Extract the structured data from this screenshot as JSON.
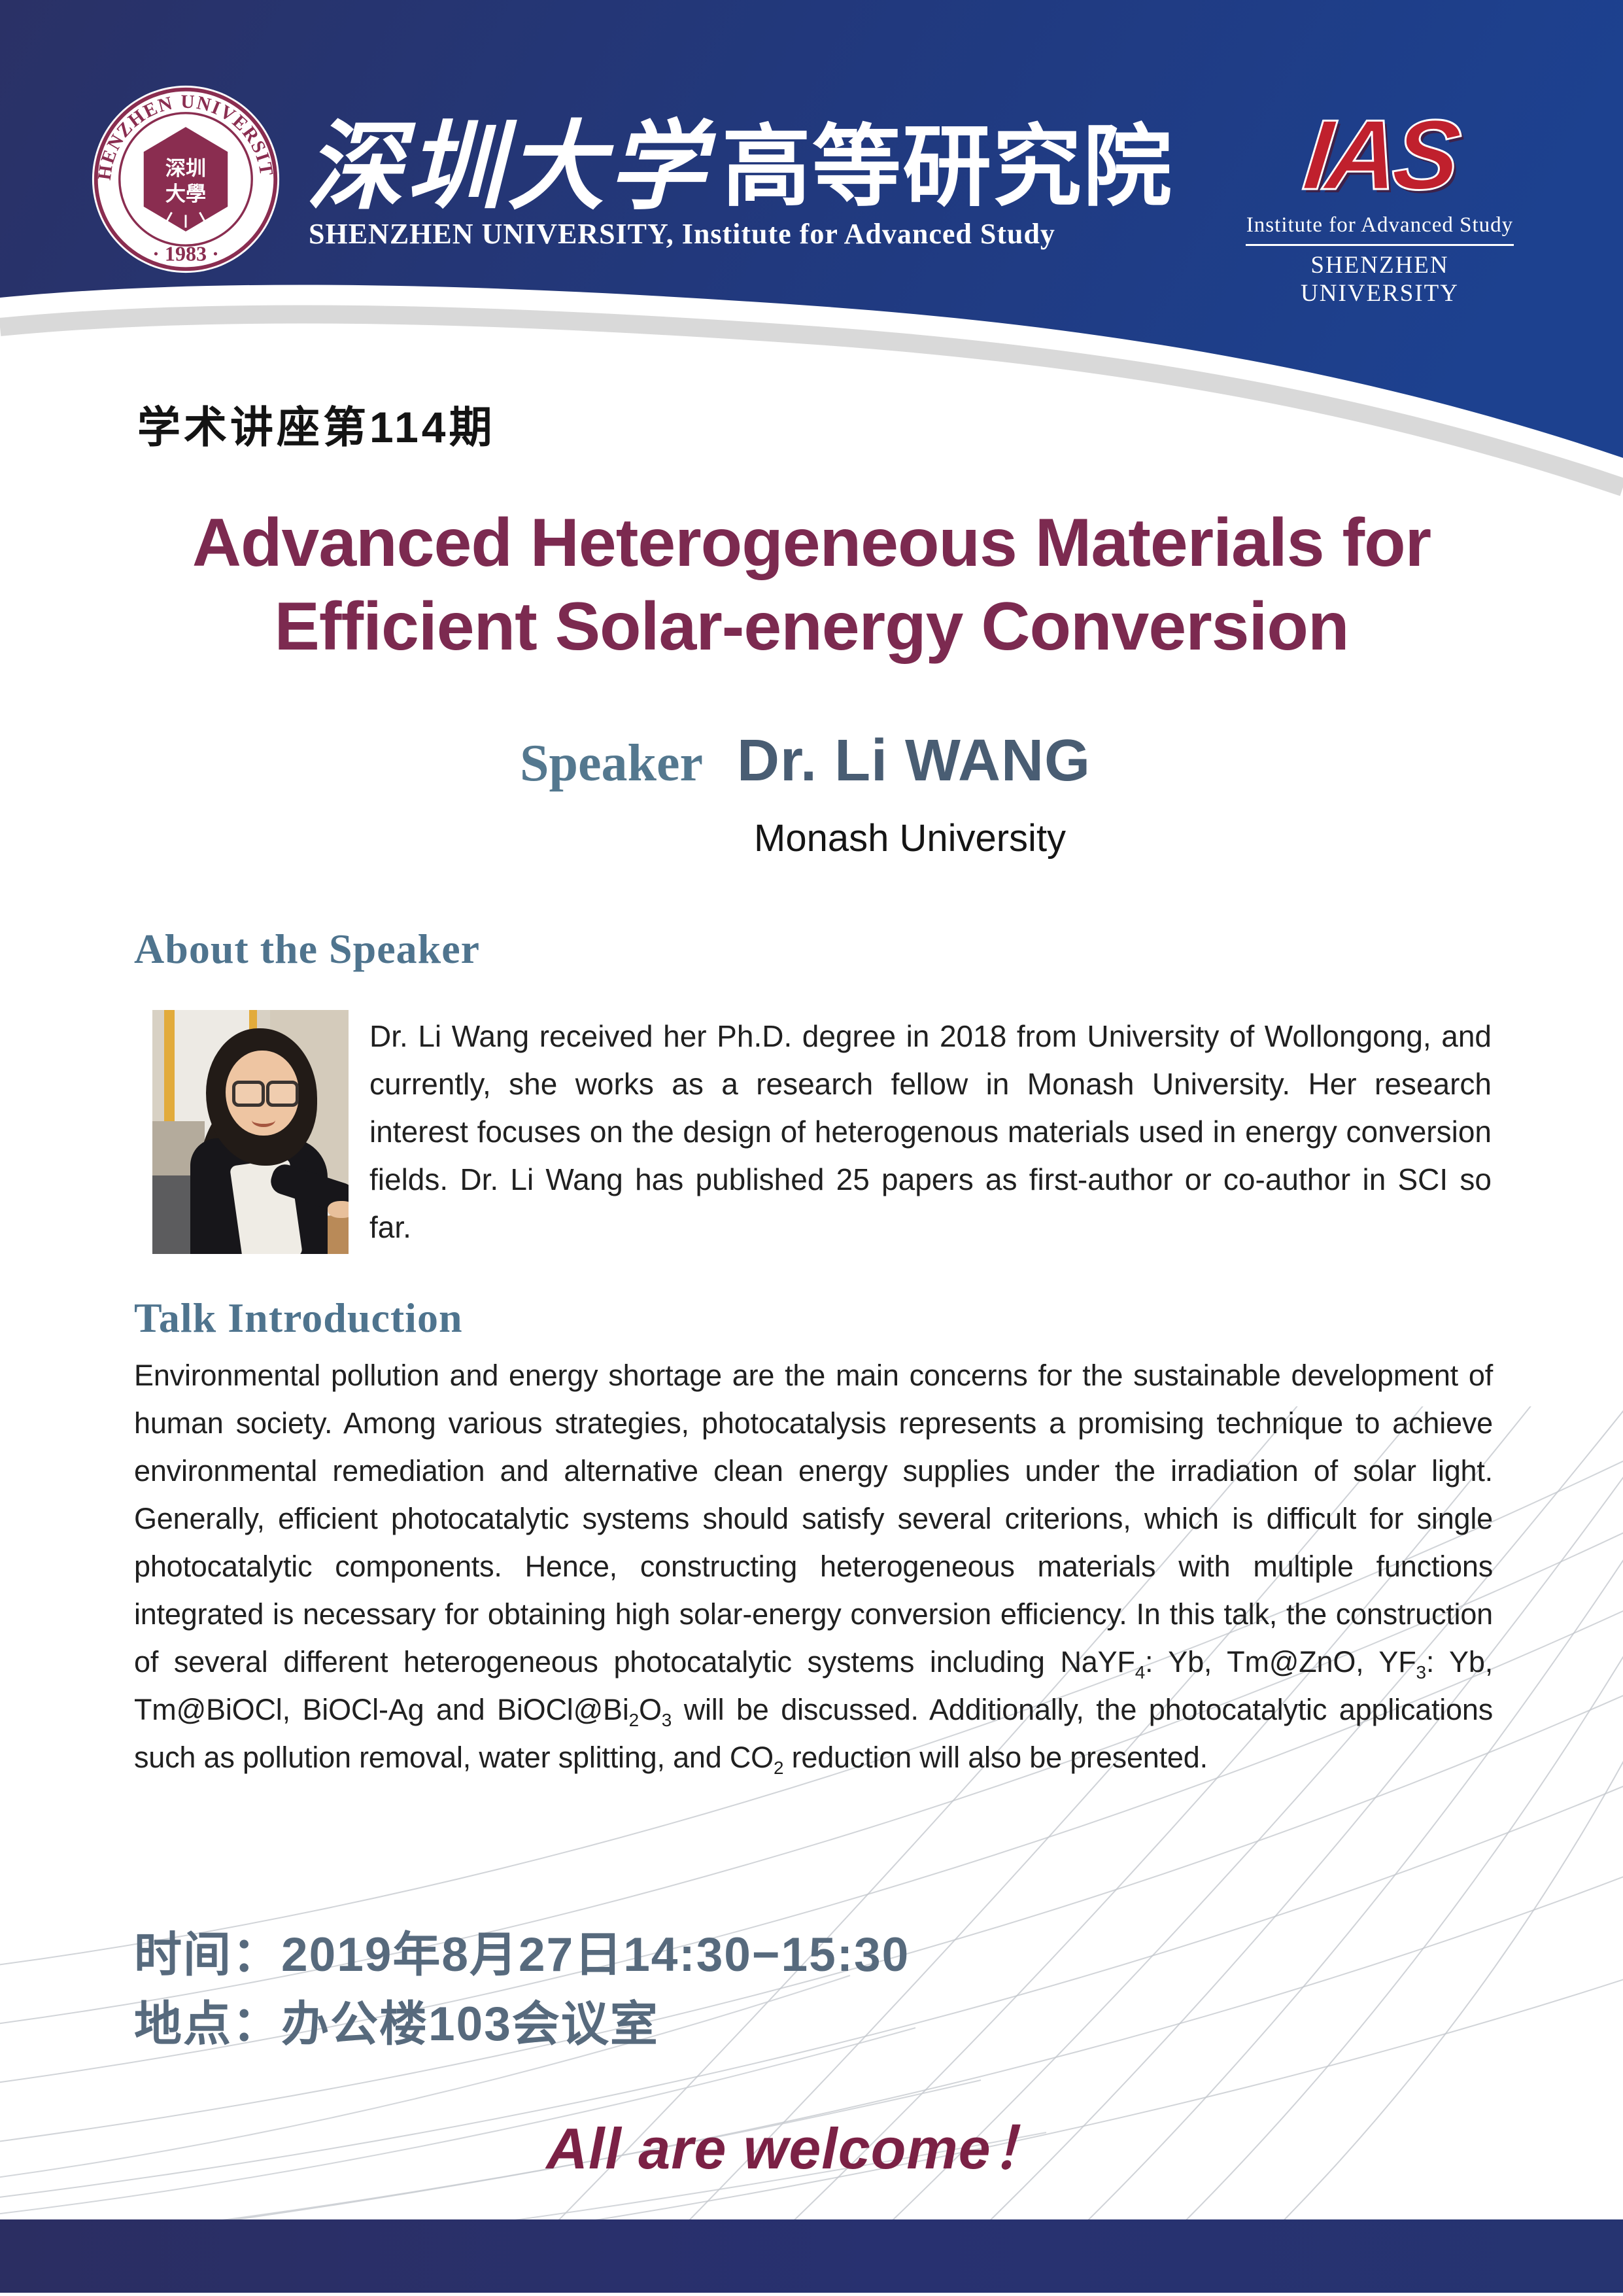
{
  "header": {
    "brand_cn_script": "深圳大学",
    "brand_cn_block": "高等研究院",
    "brand_en": "SHENZHEN UNIVERSITY, Institute for Advanced Study",
    "seal": {
      "ring_text": "SHENZHEN UNIVERSITY",
      "year": "· 1983 ·",
      "emblem_line1": "深圳",
      "emblem_line2": "大學"
    },
    "ias": {
      "mark": "IAS",
      "line1": "Institute for Advanced Study",
      "line2": "SHENZHEN UNIVERSITY"
    }
  },
  "lecture": {
    "series_label": "学术讲座第114期",
    "title_line1": "Advanced Heterogeneous Materials for",
    "title_line2": "Efficient Solar-energy Conversion",
    "speaker_label": "Speaker",
    "speaker_name": "Dr. Li WANG",
    "affiliation": "Monash University"
  },
  "about": {
    "heading": "About the Speaker",
    "photo_alt": "Photo of Dr. Li Wang",
    "bio": "Dr. Li Wang received her Ph.D. degree in 2018 from University of Wollongong, and currently, she works as a research fellow in Monash University. Her research interest focuses on the design of heterogenous materials used in energy conversion fields. Dr. Li Wang has published 25 papers as first-author or co-author in SCI so far."
  },
  "talk": {
    "heading": "Talk Introduction",
    "intro_segments": [
      {
        "text": "Environmental pollution and energy shortage are the main concerns for the sustainable development of human society. Among various strategies, photocatalysis represents a promising technique to achieve environmental remediation and alternative clean energy supplies under the irradiation of solar light. Generally, efficient photocatalytic systems should satisfy several criterions, which is difficult for single photocatalytic components. Hence, constructing heterogeneous materials with multiple functions integrated is necessary for obtaining high solar-energy conversion efficiency. In this talk, the construction of several different heterogeneous photocatalytic systems including NaYF"
      },
      {
        "text": "4",
        "sub": true
      },
      {
        "text": ": Yb, Tm@ZnO, YF"
      },
      {
        "text": "3",
        "sub": true
      },
      {
        "text": ": Yb, Tm@BiOCl, BiOCl-Ag and BiOCl@Bi"
      },
      {
        "text": "2",
        "sub": true
      },
      {
        "text": "O"
      },
      {
        "text": "3",
        "sub": true
      },
      {
        "text": " will be discussed. Additionally, the photocatalytic applications such as pollution removal, water splitting, and CO"
      },
      {
        "text": "2",
        "sub": true
      },
      {
        "text": " reduction will also be presented."
      }
    ]
  },
  "schedule": {
    "time_label": "时间：",
    "time_value": "2019年8月27日14:30−15:30",
    "venue_label": "地点：",
    "venue_value": "办公楼103会议室"
  },
  "welcome": {
    "text": "All are welcome！"
  },
  "colors": {
    "header_navy_left": "#2a3166",
    "header_navy_right": "#1d418f",
    "footer_navy": "#2b2e62",
    "title_maroon": "#7c2a50",
    "welcome_maroon": "#7b2145",
    "heading_slate": "#4f748e",
    "speaker_name_slate": "#495d73",
    "schedule_slate": "#576a7d",
    "seal_maroon": "#8a2d50",
    "ias_red": "#c0202d",
    "decor_line_gray": "#c6cacf"
  }
}
